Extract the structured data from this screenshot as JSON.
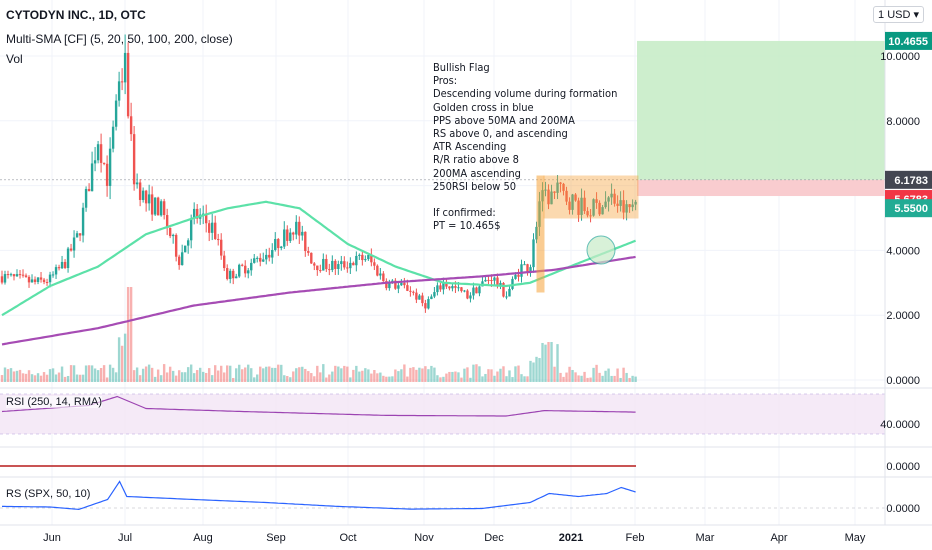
{
  "header": {
    "symbol": "CYTODYN INC., 1D, OTC",
    "sma_label": "Multi-SMA [CF] (5, 20, 50, 100, 200, close)",
    "vol_label": "Vol",
    "currency": "1 USD"
  },
  "annotation": {
    "lines": [
      "Bullish Flag",
      "Pros:",
      "Descending volume during formation",
      "Golden cross in blue",
      "PPS above 50MA and 200MA",
      "RS above 0, and ascending",
      "ATR Ascending",
      "R/R ratio above 8",
      "200MA ascending",
      "250RSI below 50",
      "",
      "If confirmed:",
      "PT = 10.465$"
    ]
  },
  "indicators": {
    "rsi_label": "RSI (250, 14, RMA)",
    "rs_label": "RS (SPX, 50, 10)"
  },
  "colors": {
    "up": "#26a69a",
    "down": "#ef5350",
    "sma50": "#5ce1a8",
    "sma200": "#a64cb4",
    "rsi": "#9c44b2",
    "rs": "#2962ff",
    "atr": "#b71c1c",
    "flag": "#f7a33a",
    "target_zone": "#c8ecc8",
    "stop_zone": "#f9c9cc"
  },
  "chart_data": {
    "type": "candlestick",
    "x_ticks": [
      "Jun",
      "Jul",
      "Aug",
      "Sep",
      "Oct",
      "Nov",
      "Dec",
      "2021",
      "Feb",
      "Mar",
      "Apr",
      "May"
    ],
    "price_axis_ticks": [
      "10.0000",
      "8.0000",
      "4.0000",
      "2.0000",
      "0.0000"
    ],
    "price_ylim": [
      0,
      11.3
    ],
    "price_badges": [
      {
        "value": "10.4655",
        "color": "#089981"
      },
      {
        "value": "6.1783",
        "color": "#434651"
      },
      {
        "value": "5.6783",
        "color": "#f23645"
      },
      {
        "value": "5.5500",
        "color": "#22ab94"
      }
    ],
    "candle_keypoints": [
      {
        "t": 0.0,
        "p": 3.2
      },
      {
        "t": 0.07,
        "p": 3.0
      },
      {
        "t": 0.1,
        "p": 3.1
      },
      {
        "t": 0.13,
        "p": 3.6
      },
      {
        "t": 0.16,
        "p": 4.5
      },
      {
        "t": 0.18,
        "p": 6.0
      },
      {
        "t": 0.2,
        "p": 7.5
      },
      {
        "t": 0.22,
        "p": 6.2
      },
      {
        "t": 0.235,
        "p": 8.0
      },
      {
        "t": 0.255,
        "p": 9.8
      },
      {
        "t": 0.275,
        "p": 6.3
      },
      {
        "t": 0.3,
        "p": 5.5
      },
      {
        "t": 0.33,
        "p": 5.3
      },
      {
        "t": 0.35,
        "p": 4.5
      },
      {
        "t": 0.37,
        "p": 3.7
      },
      {
        "t": 0.4,
        "p": 5.1
      },
      {
        "t": 0.44,
        "p": 4.7
      },
      {
        "t": 0.47,
        "p": 3.2
      },
      {
        "t": 0.52,
        "p": 3.6
      },
      {
        "t": 0.56,
        "p": 4.0
      },
      {
        "t": 0.61,
        "p": 4.8
      },
      {
        "t": 0.65,
        "p": 3.6
      },
      {
        "t": 0.7,
        "p": 3.5
      },
      {
        "t": 0.76,
        "p": 3.8
      },
      {
        "t": 0.8,
        "p": 3.0
      },
      {
        "t": 0.85,
        "p": 2.8
      },
      {
        "t": 0.88,
        "p": 2.3
      },
      {
        "t": 0.92,
        "p": 3.0
      },
      {
        "t": 0.97,
        "p": 2.6
      },
      {
        "t": 1.02,
        "p": 3.2
      },
      {
        "t": 1.05,
        "p": 2.6
      },
      {
        "t": 1.08,
        "p": 3.5
      },
      {
        "t": 1.1,
        "p": 3.5
      },
      {
        "t": 1.12,
        "p": 5.5
      },
      {
        "t": 1.16,
        "p": 5.8
      },
      {
        "t": 1.22,
        "p": 5.2
      },
      {
        "t": 1.27,
        "p": 5.6
      },
      {
        "t": 1.3,
        "p": 5.2
      },
      {
        "t": 1.32,
        "p": 5.5
      }
    ],
    "sma50_keypoints": [
      {
        "t": 0.0,
        "p": 2.0
      },
      {
        "t": 0.1,
        "p": 2.9
      },
      {
        "t": 0.2,
        "p": 3.5
      },
      {
        "t": 0.3,
        "p": 4.5
      },
      {
        "t": 0.4,
        "p": 5.0
      },
      {
        "t": 0.47,
        "p": 5.3
      },
      {
        "t": 0.55,
        "p": 5.5
      },
      {
        "t": 0.62,
        "p": 5.3
      },
      {
        "t": 0.72,
        "p": 4.2
      },
      {
        "t": 0.82,
        "p": 3.5
      },
      {
        "t": 0.92,
        "p": 3.0
      },
      {
        "t": 1.05,
        "p": 2.9
      },
      {
        "t": 1.1,
        "p": 3.0
      },
      {
        "t": 1.2,
        "p": 3.6
      },
      {
        "t": 1.32,
        "p": 4.3
      }
    ],
    "sma200_keypoints": [
      {
        "t": 0.0,
        "p": 1.1
      },
      {
        "t": 0.2,
        "p": 1.6
      },
      {
        "t": 0.4,
        "p": 2.3
      },
      {
        "t": 0.6,
        "p": 2.7
      },
      {
        "t": 0.8,
        "p": 3.0
      },
      {
        "t": 1.0,
        "p": 3.2
      },
      {
        "t": 1.15,
        "p": 3.4
      },
      {
        "t": 1.32,
        "p": 3.8
      }
    ],
    "rsi_axis_tick": "40.0000",
    "rsi_keypoints": [
      {
        "t": 0.0,
        "p": 0.45
      },
      {
        "t": 0.18,
        "p": 0.65
      },
      {
        "t": 0.24,
        "p": 0.95
      },
      {
        "t": 0.3,
        "p": 0.55
      },
      {
        "t": 0.5,
        "p": 0.45
      },
      {
        "t": 0.8,
        "p": 0.32
      },
      {
        "t": 1.05,
        "p": 0.3
      },
      {
        "t": 1.13,
        "p": 0.48
      },
      {
        "t": 1.32,
        "p": 0.43
      }
    ],
    "atr_axis_tick": "0.0000",
    "rs_axis_tick": "0.0000",
    "rs_keypoints": [
      {
        "t": 0.0,
        "p": 0.12
      },
      {
        "t": 0.1,
        "p": 0.1
      },
      {
        "t": 0.16,
        "p": 0.02
      },
      {
        "t": 0.22,
        "p": 0.35
      },
      {
        "t": 0.245,
        "p": 0.95
      },
      {
        "t": 0.26,
        "p": 0.45
      },
      {
        "t": 0.4,
        "p": 0.35
      },
      {
        "t": 0.55,
        "p": 0.25
      },
      {
        "t": 0.7,
        "p": 0.12
      },
      {
        "t": 0.85,
        "p": 0.03
      },
      {
        "t": 1.0,
        "p": 0.05
      },
      {
        "t": 1.1,
        "p": 0.25
      },
      {
        "t": 1.14,
        "p": 0.55
      },
      {
        "t": 1.2,
        "p": 0.45
      },
      {
        "t": 1.26,
        "p": 0.55
      },
      {
        "t": 1.29,
        "p": 0.75
      },
      {
        "t": 1.32,
        "p": 0.6
      }
    ],
    "target_price": 10.4655,
    "entry_price": 6.1783,
    "stop_price": 5.6783
  }
}
